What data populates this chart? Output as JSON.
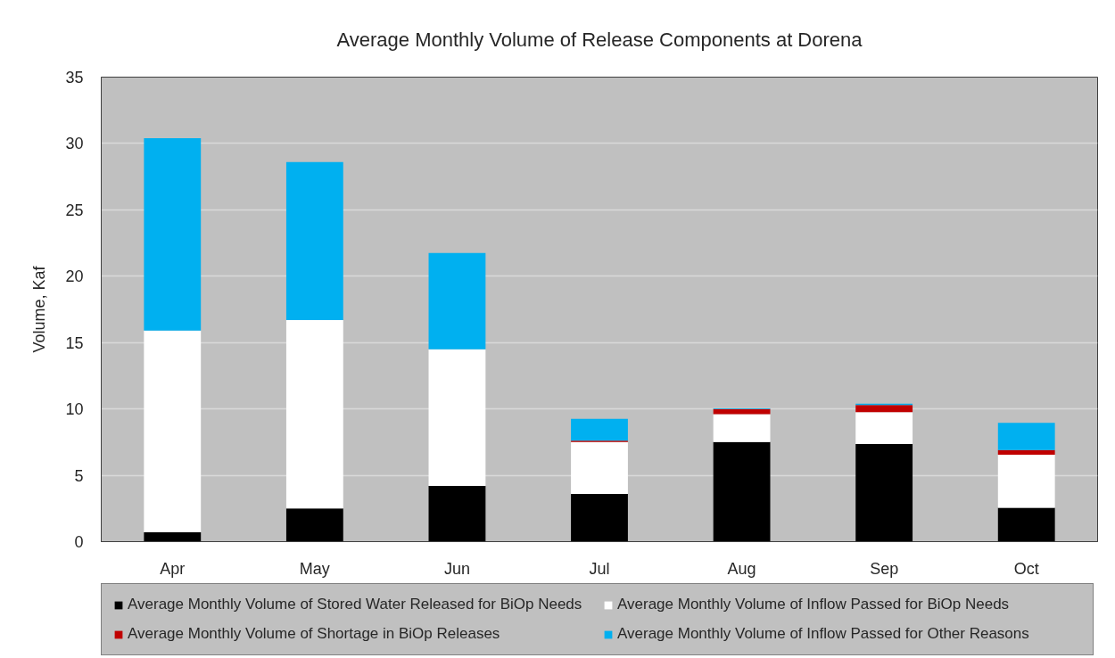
{
  "chart_data": {
    "type": "bar",
    "title": "Average Monthly Volume of Release Components at Dorena",
    "ylabel": "Volume, Kaf",
    "categories": [
      "Apr",
      "May",
      "Jun",
      "Jul",
      "Aug",
      "Sep",
      "Oct"
    ],
    "stacked": true,
    "series": [
      {
        "name": "Average Monthly Volume of Stored Water Released for BiOp Needs",
        "color": "#000000",
        "values": [
          0.7,
          2.5,
          4.2,
          3.6,
          7.5,
          7.35,
          2.55
        ]
      },
      {
        "name": "Average Monthly Volume of Inflow Passed for BiOp Needs",
        "color": "#ffffff",
        "values": [
          15.2,
          14.2,
          10.3,
          3.9,
          2.1,
          2.4,
          4.0
        ]
      },
      {
        "name": "Average Monthly Volume of Shortage in BiOp Releases",
        "color": "#c00000",
        "values": [
          0,
          0,
          0,
          0.1,
          0.4,
          0.55,
          0.35
        ]
      },
      {
        "name": "Average Monthly Volume of Inflow Passed for Other Reasons",
        "color": "#00b0f0",
        "values": [
          14.5,
          11.9,
          7.25,
          1.65,
          0.05,
          0.1,
          2.05
        ]
      }
    ],
    "ylim": [
      0,
      35
    ],
    "yticks": [
      0,
      5,
      10,
      15,
      20,
      25,
      30,
      35
    ],
    "grid": "y",
    "legend": "bottom"
  }
}
